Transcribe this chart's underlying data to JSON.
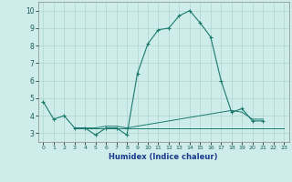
{
  "xlabel": "Humidex (Indice chaleur)",
  "x": [
    0,
    1,
    2,
    3,
    4,
    5,
    6,
    7,
    8,
    9,
    10,
    11,
    12,
    13,
    14,
    15,
    16,
    17,
    18,
    19,
    20,
    21,
    22,
    23
  ],
  "line1": [
    4.8,
    3.8,
    4.0,
    3.3,
    3.3,
    2.9,
    3.3,
    3.3,
    2.9,
    6.4,
    8.1,
    8.9,
    9.0,
    9.7,
    10.0,
    9.3,
    8.5,
    6.0,
    4.2,
    4.4,
    3.7,
    3.7,
    null,
    null
  ],
  "line2": [
    null,
    null,
    null,
    3.3,
    3.3,
    3.3,
    3.4,
    3.4,
    3.3,
    3.4,
    3.5,
    3.6,
    3.7,
    3.8,
    3.9,
    4.0,
    4.1,
    4.2,
    4.3,
    4.2,
    3.8,
    3.8,
    null,
    null
  ],
  "line3": [
    null,
    null,
    null,
    3.3,
    3.3,
    3.3,
    3.3,
    3.3,
    3.3,
    3.3,
    3.3,
    3.3,
    3.3,
    3.3,
    3.3,
    3.3,
    3.3,
    3.3,
    3.3,
    3.3,
    3.3,
    3.3,
    3.3,
    3.3
  ],
  "line_color": "#1a7a6e",
  "bg_color": "#ceecea",
  "grid_color": "#aed4d0",
  "ylim": [
    2.5,
    10.5
  ],
  "xlim": [
    -0.5,
    23.5
  ],
  "yticks": [
    3,
    4,
    5,
    6,
    7,
    8,
    9,
    10
  ],
  "xticks": [
    0,
    1,
    2,
    3,
    4,
    5,
    6,
    7,
    8,
    9,
    10,
    11,
    12,
    13,
    14,
    15,
    16,
    17,
    18,
    19,
    20,
    21,
    22,
    23
  ]
}
